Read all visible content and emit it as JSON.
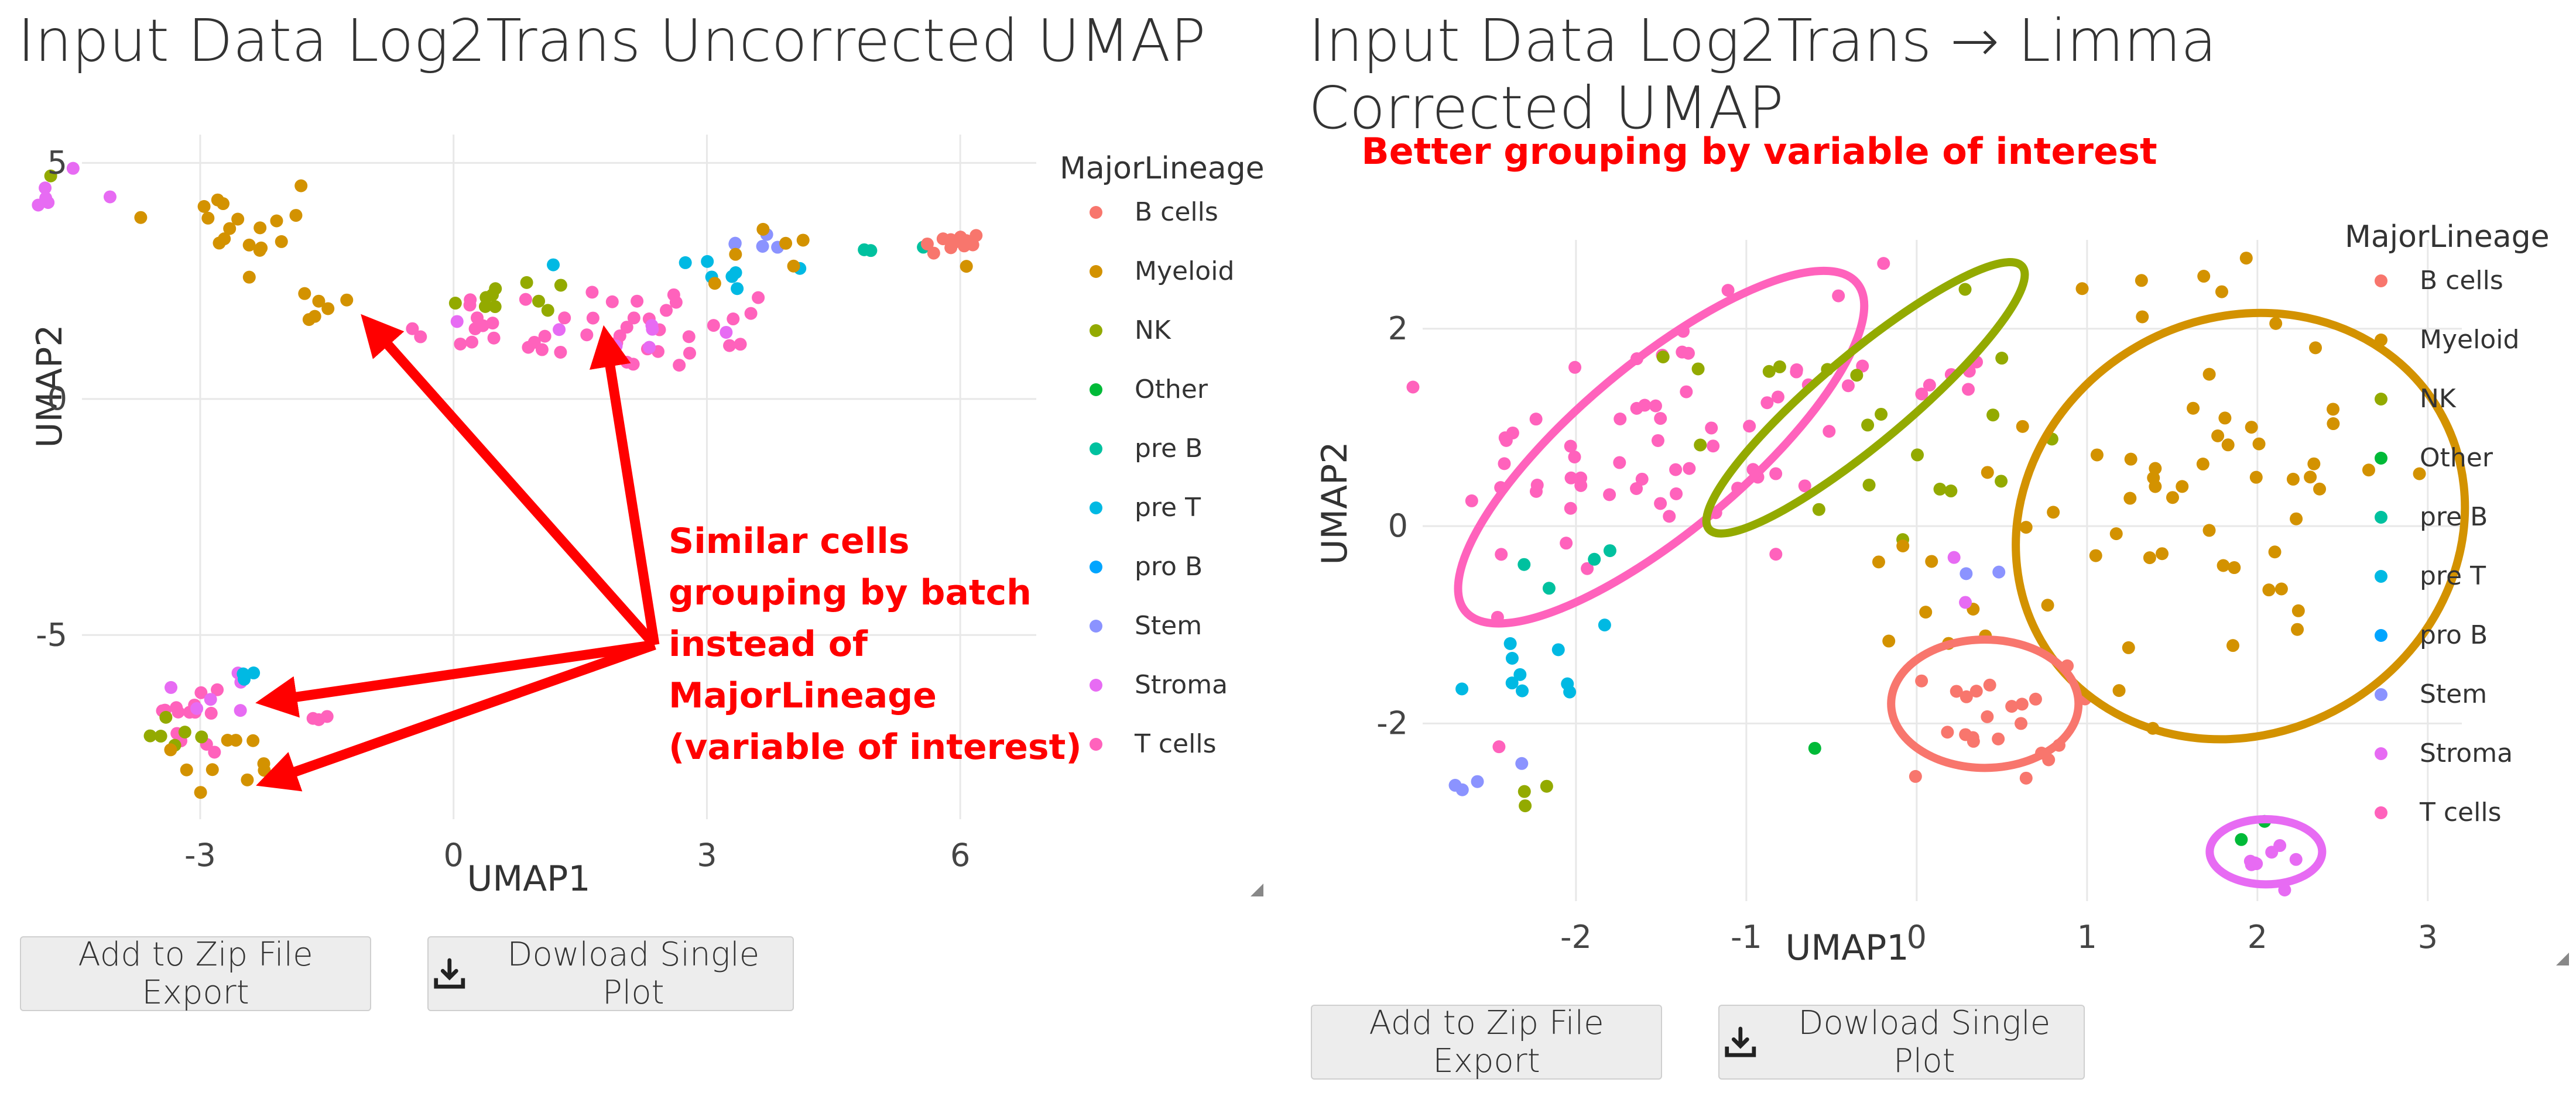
{
  "legend_title": "MajorLineage",
  "lineages": [
    {
      "name": "B cells",
      "color": "#F8766D"
    },
    {
      "name": "Myeloid",
      "color": "#D39200"
    },
    {
      "name": "NK",
      "color": "#93AA00"
    },
    {
      "name": "Other",
      "color": "#00BA38"
    },
    {
      "name": "pre B",
      "color": "#00C19F"
    },
    {
      "name": "pre T",
      "color": "#00B9E3"
    },
    {
      "name": "pro B",
      "color": "#00A5FF"
    },
    {
      "name": "Stem",
      "color": "#8B93FF"
    },
    {
      "name": "Stroma",
      "color": "#E76BF3"
    },
    {
      "name": "T cells",
      "color": "#FF62BC"
    }
  ],
  "annotation_color": "#FF0000",
  "buttons": {
    "zip_label": "Add to Zip File Export",
    "download_label": "Dowload Single Plot"
  },
  "icons": {
    "download": "download-icon",
    "resize": "resize-handle-icon"
  },
  "left": {
    "title": "Input Data Log2Trans Uncorrected UMAP",
    "annotation": [
      "Similar cells",
      "grouping by batch",
      "instead of",
      "MajorLineage",
      "(variable of interest)"
    ],
    "chart_data": {
      "type": "scatter",
      "xlabel": "UMAP1",
      "ylabel": "UMAP2",
      "xlim": [
        -4.4,
        6.9
      ],
      "ylim": [
        -8.9,
        5.6
      ],
      "xticks": [
        -3,
        0,
        3,
        6
      ],
      "yticks": [
        5,
        0,
        -5
      ],
      "grid": true,
      "legend_position": "right",
      "clusters": [
        {
          "lineage": "Stroma",
          "cx": -4.9,
          "cy": 4.5,
          "sx": 0.3,
          "sy": 0.3,
          "n": 6
        },
        {
          "lineage": "NK",
          "cx": -4.7,
          "cy": 4.7,
          "sx": 0.05,
          "sy": 0.05,
          "n": 1
        },
        {
          "lineage": "Myeloid",
          "cx": -2.6,
          "cy": 3.6,
          "sx": 0.6,
          "sy": 0.6,
          "n": 18
        },
        {
          "lineage": "Myeloid",
          "cx": -1.6,
          "cy": 1.8,
          "sx": 0.3,
          "sy": 0.3,
          "n": 6
        },
        {
          "lineage": "NK",
          "cx": 0.9,
          "cy": 2.2,
          "sx": 0.6,
          "sy": 0.2,
          "n": 10
        },
        {
          "lineage": "T cells",
          "cx": 1.8,
          "cy": 1.5,
          "sx": 1.2,
          "sy": 0.45,
          "n": 45
        },
        {
          "lineage": "Stroma",
          "cx": 2.1,
          "cy": 1.3,
          "sx": 0.8,
          "sy": 0.3,
          "n": 8
        },
        {
          "lineage": "pre T",
          "cx": 3.2,
          "cy": 2.7,
          "sx": 0.5,
          "sy": 0.3,
          "n": 8
        },
        {
          "lineage": "Stem",
          "cx": 3.4,
          "cy": 3.3,
          "sx": 0.4,
          "sy": 0.2,
          "n": 5
        },
        {
          "lineage": "Myeloid",
          "cx": 3.7,
          "cy": 3.0,
          "sx": 0.5,
          "sy": 0.4,
          "n": 6
        },
        {
          "lineage": "pre B",
          "cx": 5.1,
          "cy": 3.2,
          "sx": 0.2,
          "sy": 0.1,
          "n": 3
        },
        {
          "lineage": "B cells",
          "cx": 5.9,
          "cy": 3.3,
          "sx": 0.2,
          "sy": 0.12,
          "n": 14
        },
        {
          "lineage": "Myeloid",
          "cx": 6.15,
          "cy": 2.8,
          "sx": 0.05,
          "sy": 0.05,
          "n": 1
        },
        {
          "lineage": "T cells",
          "cx": -3.1,
          "cy": -6.7,
          "sx": 0.35,
          "sy": 0.45,
          "n": 14
        },
        {
          "lineage": "Stroma",
          "cx": -2.7,
          "cy": -6.2,
          "sx": 0.3,
          "sy": 0.3,
          "n": 6
        },
        {
          "lineage": "NK",
          "cx": -3.2,
          "cy": -7.0,
          "sx": 0.25,
          "sy": 0.3,
          "n": 6
        },
        {
          "lineage": "Myeloid",
          "cx": -2.8,
          "cy": -7.8,
          "sx": 0.4,
          "sy": 0.4,
          "n": 10
        },
        {
          "lineage": "pre T",
          "cx": -2.5,
          "cy": -5.8,
          "sx": 0.15,
          "sy": 0.1,
          "n": 3
        },
        {
          "lineage": "T cells",
          "cx": -1.5,
          "cy": -6.8,
          "sx": 0.1,
          "sy": 0.1,
          "n": 3
        }
      ]
    }
  },
  "right": {
    "title": "Input Data Log2Trans → Limma Corrected UMAP",
    "annotation": "Better grouping by variable of interest",
    "chart_data": {
      "type": "scatter",
      "xlabel": "UMAP1",
      "ylabel": "UMAP2",
      "xlim": [
        -2.9,
        3.2
      ],
      "ylim": [
        -3.8,
        2.9
      ],
      "xticks": [
        -2,
        -1,
        0,
        1,
        2,
        3
      ],
      "yticks": [
        2,
        0,
        -2
      ],
      "grid": true,
      "legend_position": "right",
      "clusters": [
        {
          "lineage": "T cells",
          "cx": -1.6,
          "cy": 0.7,
          "sx": 0.55,
          "sy": 0.7,
          "n": 55
        },
        {
          "lineage": "T cells",
          "cx": -0.5,
          "cy": 1.5,
          "sx": 0.5,
          "sy": 0.5,
          "n": 15
        },
        {
          "lineage": "NK",
          "cx": -0.4,
          "cy": 1.0,
          "sx": 0.5,
          "sy": 0.6,
          "n": 20
        },
        {
          "lineage": "pre T",
          "cx": -2.3,
          "cy": -1.5,
          "sx": 0.3,
          "sy": 0.5,
          "n": 10
        },
        {
          "lineage": "pre B",
          "cx": -1.8,
          "cy": -0.4,
          "sx": 0.3,
          "sy": 0.3,
          "n": 4
        },
        {
          "lineage": "Stem",
          "cx": -2.4,
          "cy": -2.6,
          "sx": 0.15,
          "sy": 0.2,
          "n": 4
        },
        {
          "lineage": "NK",
          "cx": -2.2,
          "cy": -2.6,
          "sx": 0.15,
          "sy": 0.15,
          "n": 3
        },
        {
          "lineage": "Myeloid",
          "cx": 1.8,
          "cy": 0.5,
          "sx": 0.55,
          "sy": 1.1,
          "n": 55
        },
        {
          "lineage": "Myeloid",
          "cx": 0.1,
          "cy": -0.6,
          "sx": 0.2,
          "sy": 0.4,
          "n": 8
        },
        {
          "lineage": "B cells",
          "cx": 0.4,
          "cy": -2.0,
          "sx": 0.25,
          "sy": 0.3,
          "n": 22
        },
        {
          "lineage": "Other",
          "cx": -0.6,
          "cy": -2.2,
          "sx": 0.05,
          "sy": 0.05,
          "n": 1
        },
        {
          "lineage": "Stem",
          "cx": 0.35,
          "cy": -0.6,
          "sx": 0.1,
          "sy": 0.1,
          "n": 2
        },
        {
          "lineage": "Stroma",
          "cx": 0.1,
          "cy": -0.6,
          "sx": 0.1,
          "sy": 0.2,
          "n": 2
        },
        {
          "lineage": "Other",
          "cx": 2.0,
          "cy": -3.1,
          "sx": 0.05,
          "sy": 0.1,
          "n": 2
        },
        {
          "lineage": "Stroma",
          "cx": 2.05,
          "cy": -3.4,
          "sx": 0.12,
          "sy": 0.1,
          "n": 8
        }
      ],
      "ellipses": [
        {
          "lineage": "T cells",
          "cx": -1.5,
          "cy": 0.8,
          "rx": 1.5,
          "ry": 0.85,
          "angle": -40
        },
        {
          "lineage": "NK",
          "cx": -0.3,
          "cy": 1.3,
          "rx": 1.2,
          "ry": 0.45,
          "angle": -40
        },
        {
          "lineage": "Myeloid",
          "cx": 1.9,
          "cy": 0.0,
          "rx": 1.35,
          "ry": 2.1,
          "angle": -30
        },
        {
          "lineage": "B cells",
          "cx": 0.4,
          "cy": -1.8,
          "rx": 0.55,
          "ry": 0.65,
          "angle": 0
        },
        {
          "lineage": "Stroma",
          "cx": 2.05,
          "cy": -3.3,
          "rx": 0.33,
          "ry": 0.33,
          "angle": 0
        }
      ]
    }
  }
}
